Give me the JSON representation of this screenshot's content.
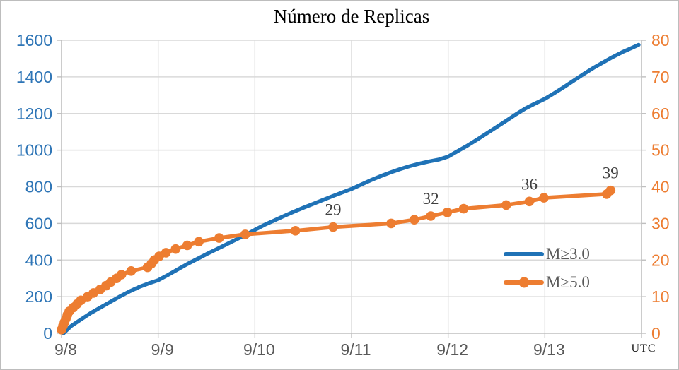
{
  "title": "Número de Replicas",
  "utc_label": "UTC",
  "colors": {
    "series_m3": "#1F72B6",
    "series_m5": "#ED7D31",
    "y_left_labels": "#2E75B6",
    "y_right_labels": "#ED7D31",
    "x_labels": "#595959",
    "legend_text": "#595959",
    "point_labels": "#404040",
    "gridline": "#D9D9D9",
    "axis_line": "#BFBFBF",
    "title_text": "#000000",
    "background": "#FFFFFF"
  },
  "chart_data": {
    "type": "line",
    "title": "Número de Replicas",
    "xlabel": "UTC",
    "x_axis": {
      "tick_labels": [
        "9/8",
        "9/9",
        "9/10",
        "9/11",
        "9/12",
        "9/13"
      ],
      "domain_days": [
        0,
        6
      ],
      "grid": true
    },
    "y_axis_left": {
      "min": 0,
      "max": 1600,
      "step": 200,
      "tick_labels": [
        "0",
        "200",
        "400",
        "600",
        "800",
        "1000",
        "1200",
        "1400",
        "1600"
      ],
      "grid": true
    },
    "y_axis_right": {
      "min": 0,
      "max": 80,
      "step": 10,
      "tick_labels": [
        "0",
        "10",
        "20",
        "30",
        "40",
        "50",
        "60",
        "70",
        "80"
      ]
    },
    "legend": {
      "position": "inside-lower-right",
      "entries": [
        "M≥3.0",
        "M≥5.0"
      ]
    },
    "series": [
      {
        "name": "M≥3.0",
        "axis": "left",
        "color": "#1F72B6",
        "marker": "none",
        "points": [
          [
            0.02,
            0
          ],
          [
            0.06,
            20
          ],
          [
            0.1,
            40
          ],
          [
            0.2,
            75
          ],
          [
            0.3,
            110
          ],
          [
            0.4,
            140
          ],
          [
            0.5,
            170
          ],
          [
            0.6,
            200
          ],
          [
            0.7,
            228
          ],
          [
            0.8,
            252
          ],
          [
            0.9,
            272
          ],
          [
            1.0,
            290
          ],
          [
            1.1,
            318
          ],
          [
            1.2,
            348
          ],
          [
            1.3,
            378
          ],
          [
            1.4,
            405
          ],
          [
            1.5,
            432
          ],
          [
            1.6,
            458
          ],
          [
            1.7,
            484
          ],
          [
            1.8,
            510
          ],
          [
            1.9,
            536
          ],
          [
            2.0,
            565
          ],
          [
            2.1,
            592
          ],
          [
            2.2,
            616
          ],
          [
            2.3,
            640
          ],
          [
            2.4,
            663
          ],
          [
            2.5,
            685
          ],
          [
            2.6,
            706
          ],
          [
            2.7,
            727
          ],
          [
            2.8,
            748
          ],
          [
            2.9,
            768
          ],
          [
            3.0,
            788
          ],
          [
            3.1,
            812
          ],
          [
            3.2,
            836
          ],
          [
            3.3,
            858
          ],
          [
            3.4,
            878
          ],
          [
            3.5,
            896
          ],
          [
            3.6,
            912
          ],
          [
            3.7,
            926
          ],
          [
            3.8,
            938
          ],
          [
            3.9,
            948
          ],
          [
            4.0,
            965
          ],
          [
            4.1,
            995
          ],
          [
            4.2,
            1025
          ],
          [
            4.3,
            1058
          ],
          [
            4.4,
            1092
          ],
          [
            4.5,
            1126
          ],
          [
            4.6,
            1160
          ],
          [
            4.7,
            1195
          ],
          [
            4.8,
            1228
          ],
          [
            4.9,
            1255
          ],
          [
            5.0,
            1280
          ],
          [
            5.1,
            1312
          ],
          [
            5.2,
            1345
          ],
          [
            5.3,
            1380
          ],
          [
            5.4,
            1415
          ],
          [
            5.5,
            1448
          ],
          [
            5.6,
            1478
          ],
          [
            5.7,
            1508
          ],
          [
            5.8,
            1535
          ],
          [
            5.9,
            1558
          ],
          [
            5.97,
            1575
          ]
        ]
      },
      {
        "name": "M≥5.0",
        "axis": "right",
        "color": "#ED7D31",
        "marker": "circle",
        "points": [
          [
            0.0,
            1
          ],
          [
            0.015,
            2
          ],
          [
            0.03,
            3
          ],
          [
            0.045,
            4
          ],
          [
            0.06,
            5
          ],
          [
            0.08,
            6
          ],
          [
            0.12,
            7
          ],
          [
            0.16,
            8
          ],
          [
            0.2,
            9
          ],
          [
            0.27,
            10
          ],
          [
            0.33,
            11
          ],
          [
            0.4,
            12
          ],
          [
            0.46,
            13
          ],
          [
            0.51,
            14
          ],
          [
            0.57,
            15
          ],
          [
            0.62,
            16
          ],
          [
            0.72,
            17
          ],
          [
            0.89,
            18
          ],
          [
            0.93,
            19
          ],
          [
            0.96,
            20
          ],
          [
            1.01,
            21
          ],
          [
            1.08,
            22
          ],
          [
            1.18,
            23
          ],
          [
            1.3,
            24
          ],
          [
            1.42,
            25
          ],
          [
            1.63,
            26
          ],
          [
            1.9,
            27
          ],
          [
            2.42,
            28
          ],
          [
            2.81,
            29
          ],
          [
            3.41,
            30
          ],
          [
            3.65,
            31
          ],
          [
            3.82,
            32
          ],
          [
            3.99,
            33
          ],
          [
            4.16,
            34
          ],
          [
            4.6,
            35
          ],
          [
            4.84,
            36
          ],
          [
            4.99,
            37
          ],
          [
            5.64,
            38
          ],
          [
            5.68,
            39
          ]
        ]
      }
    ],
    "point_labels": [
      {
        "text": "29",
        "series": "M≥5.0",
        "t": 2.81,
        "value": 29
      },
      {
        "text": "32",
        "series": "M≥5.0",
        "t": 3.82,
        "value": 32
      },
      {
        "text": "36",
        "series": "M≥5.0",
        "t": 4.84,
        "value": 36
      },
      {
        "text": "39",
        "series": "M≥5.0",
        "t": 5.68,
        "value": 39
      }
    ]
  }
}
